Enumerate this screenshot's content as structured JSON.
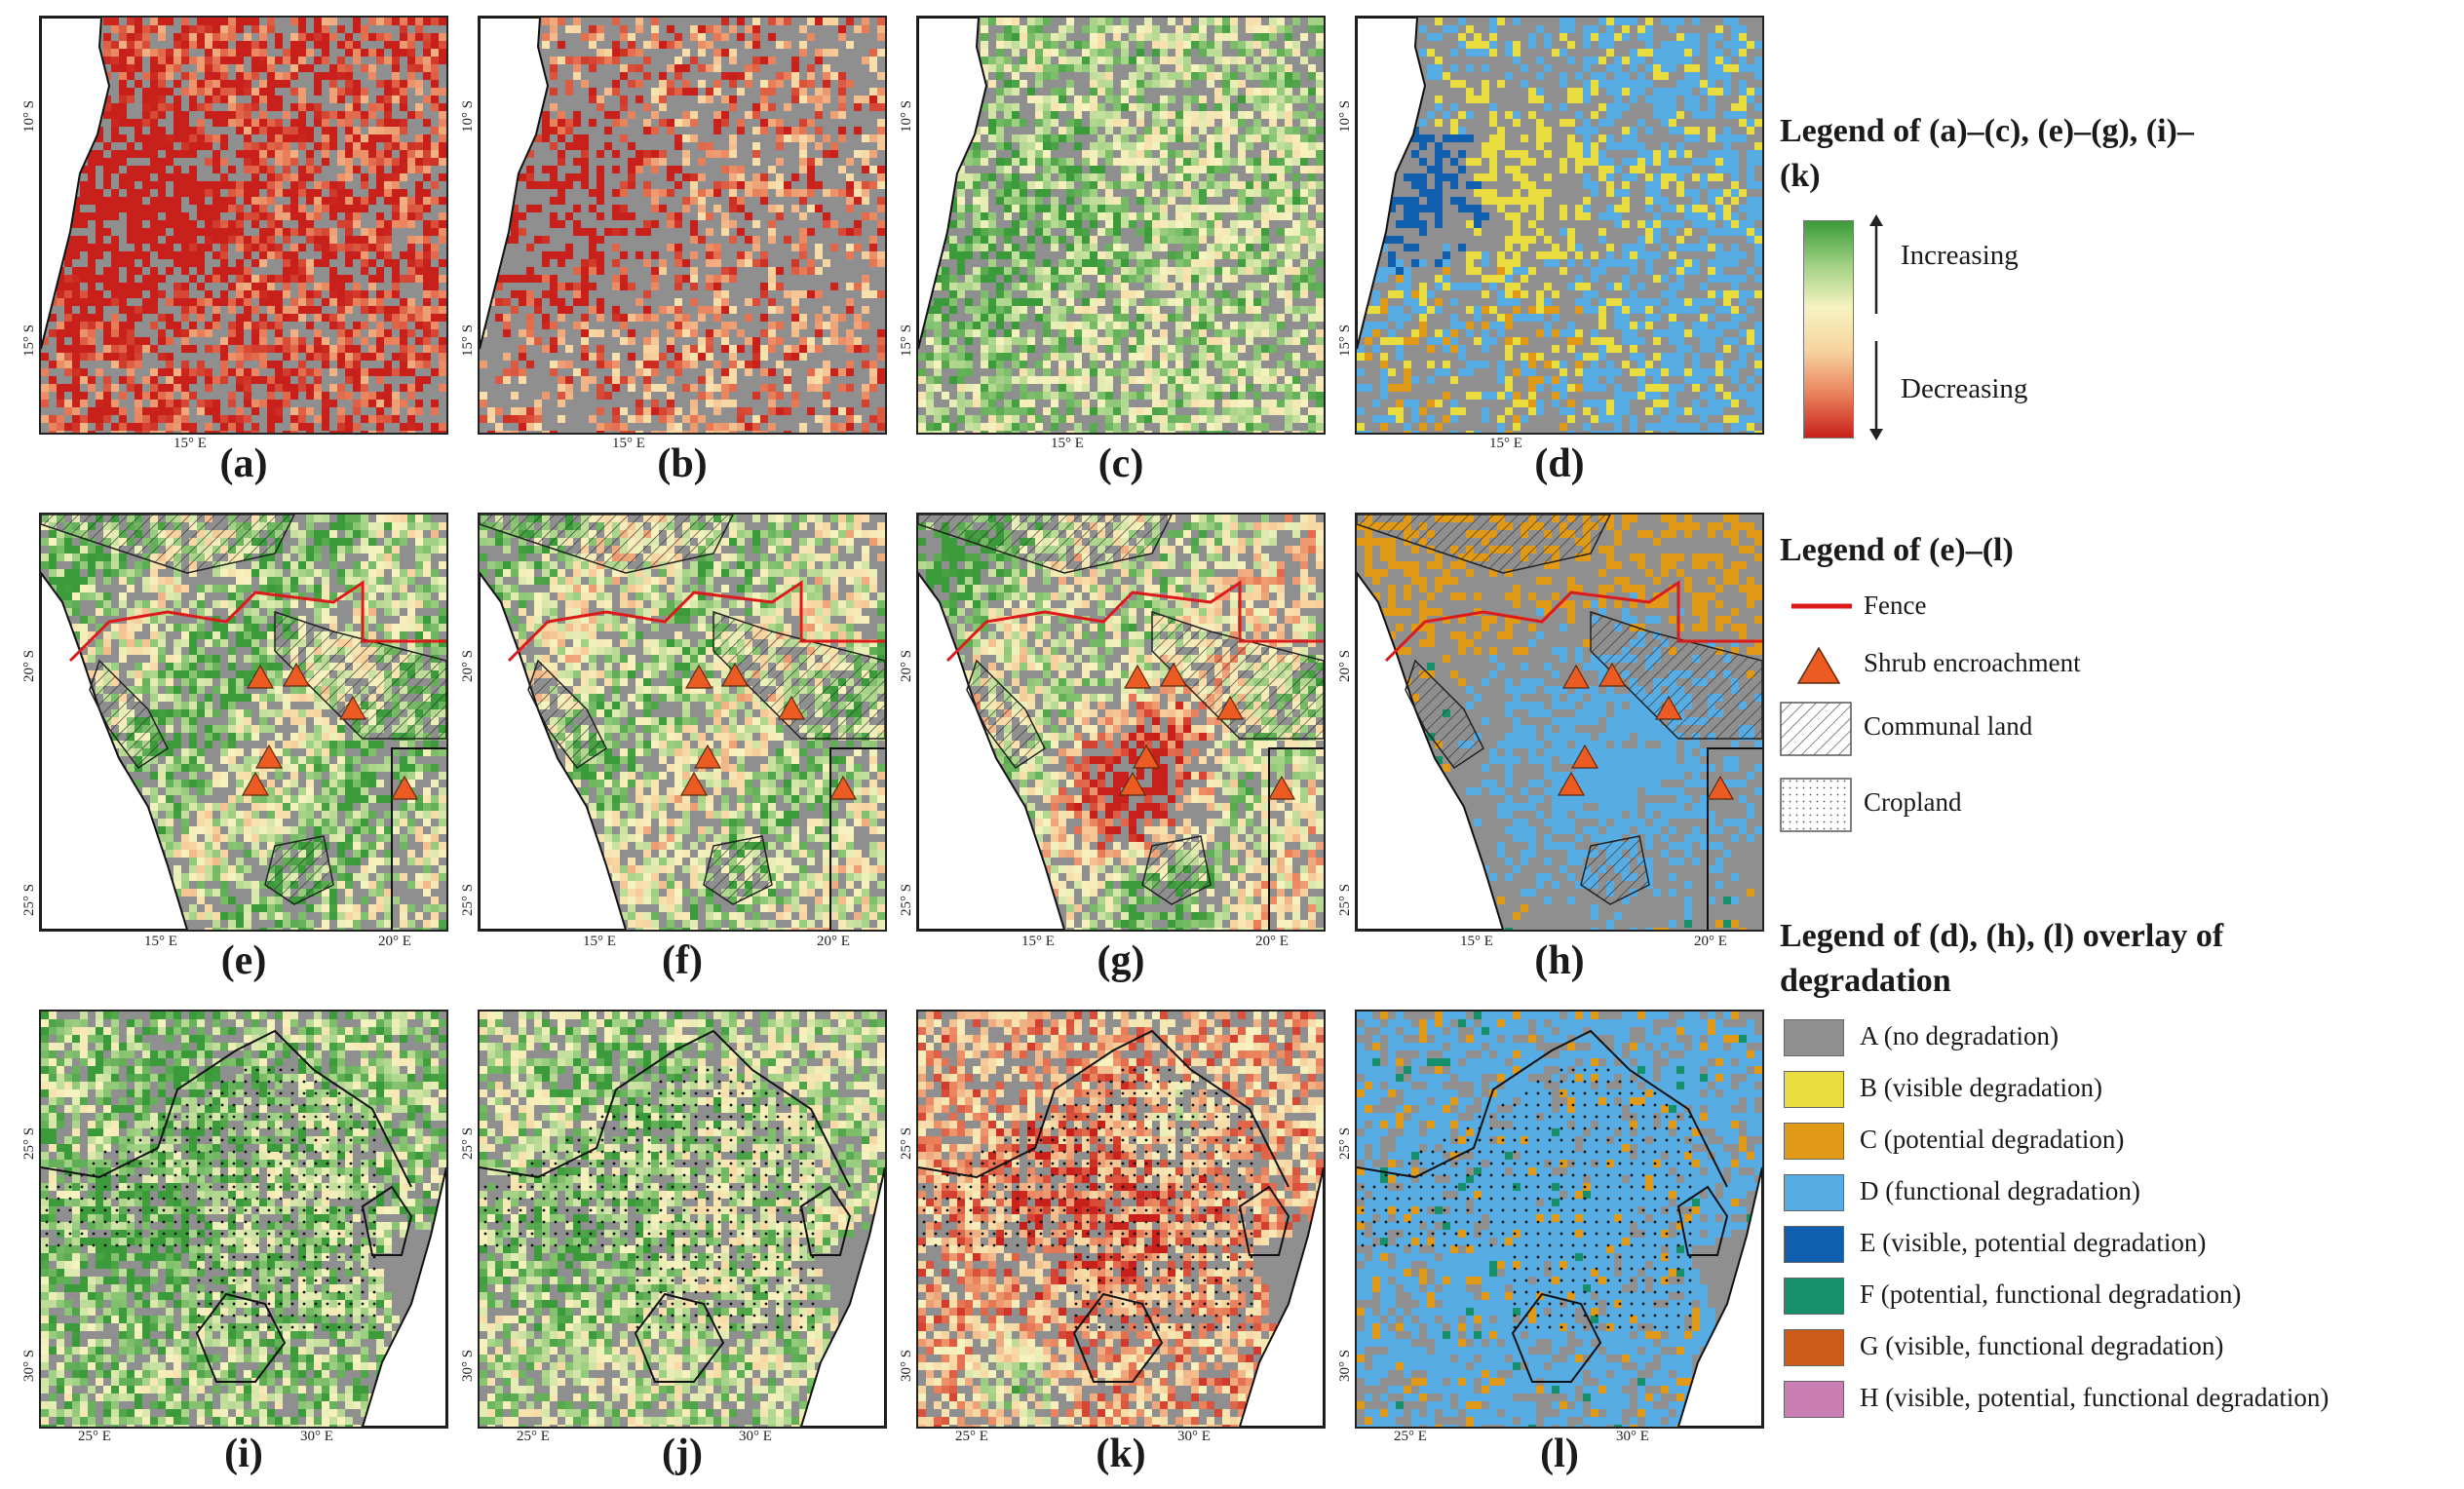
{
  "panels": [
    {
      "id": "a",
      "caption": "(a)",
      "scheme": "redgreen",
      "bias": -0.9
    },
    {
      "id": "b",
      "caption": "(b)",
      "scheme": "redgreen",
      "bias": -0.55
    },
    {
      "id": "c",
      "caption": "(c)",
      "scheme": "redgreen",
      "bias": 0.45
    },
    {
      "id": "d",
      "caption": "(d)",
      "scheme": "categorical",
      "mix": "row1"
    },
    {
      "id": "e",
      "caption": "(e)",
      "scheme": "redgreen",
      "bias": 0.5
    },
    {
      "id": "f",
      "caption": "(f)",
      "scheme": "redgreen",
      "bias": 0.35
    },
    {
      "id": "g",
      "caption": "(g)",
      "scheme": "redgreen",
      "bias": 0.15
    },
    {
      "id": "h",
      "caption": "(h)",
      "scheme": "categorical",
      "mix": "row2"
    },
    {
      "id": "i",
      "caption": "(i)",
      "scheme": "redgreen",
      "bias": 0.55
    },
    {
      "id": "j",
      "caption": "(j)",
      "scheme": "redgreen",
      "bias": 0.4
    },
    {
      "id": "k",
      "caption": "(k)",
      "scheme": "redgreen",
      "bias": -0.35
    },
    {
      "id": "l",
      "caption": "(l)",
      "scheme": "categorical",
      "mix": "row3"
    }
  ],
  "ticks": {
    "row1": {
      "lat": [
        "10° S",
        "15° S"
      ],
      "lon": [
        "15° E"
      ]
    },
    "row2": {
      "lat": [
        "20° S",
        "25° S"
      ],
      "lon": [
        "15° E",
        "20° E"
      ]
    },
    "row3": {
      "lat": [
        "25° S",
        "30° S"
      ],
      "lon": [
        "25° E",
        "30° E"
      ]
    }
  },
  "legend1": {
    "title": "Legend of (a)–(c), (e)–(g), (i)–(k)",
    "increasing": "Increasing",
    "decreasing": "Decreasing"
  },
  "legend2": {
    "title": "Legend of (e)–(l)",
    "items": [
      "Fence",
      "Shrub encroachment",
      "Communal land",
      "Cropland"
    ]
  },
  "legend3": {
    "title": "Legend of (d), (h), (l) overlay of degradation",
    "items": [
      {
        "label": "A (no degradation)",
        "color": "#8f8f8f"
      },
      {
        "label": "B (visible degradation)",
        "color": "#e8dc3e"
      },
      {
        "label": "C (potential degradation)",
        "color": "#e09a18"
      },
      {
        "label": "D (functional degradation)",
        "color": "#56ace3"
      },
      {
        "label": "E (visible, potential degradation)",
        "color": "#0f5fae"
      },
      {
        "label": "F (potential, functional degradation)",
        "color": "#16906a"
      },
      {
        "label": "G (visible, functional degradation)",
        "color": "#cc5a18"
      },
      {
        "label": "H (visible, potential, functional degradation)",
        "color": "#c97fb3"
      }
    ]
  },
  "colors": {
    "nodata": "#8f8f8f",
    "gradient": [
      "#c8201a",
      "#e9815c",
      "#f7d3a0",
      "#f6f3c0",
      "#9fd083",
      "#3b9a3a"
    ],
    "fence": "#dd1a1a",
    "shrub": "#ec5b22"
  }
}
